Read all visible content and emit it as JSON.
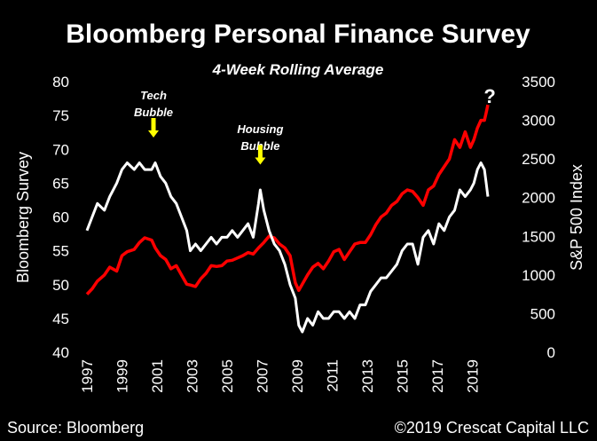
{
  "chart_data": {
    "type": "line",
    "title": "Bloomberg Personal Finance Survey",
    "subtitle": "4-Week Rolling Average",
    "xlabel": "",
    "ylabel_left": "Bloomberg  Survey",
    "ylabel_right": "S&P 500 Index",
    "xlim": [
      1997,
      2020
    ],
    "ylim_left": [
      40,
      80
    ],
    "ylim_right": [
      0,
      3500
    ],
    "x_ticks": [
      "1997",
      "1999",
      "2001",
      "2003",
      "2005",
      "2007",
      "2009",
      "2011",
      "2013",
      "2015",
      "2017",
      "2019"
    ],
    "y_left_ticks": [
      "40",
      "45",
      "50",
      "55",
      "60",
      "65",
      "70",
      "75",
      "80"
    ],
    "y_right_ticks": [
      "0",
      "500",
      "1000",
      "1500",
      "2000",
      "2500",
      "3000",
      "3500"
    ],
    "series": [
      {
        "name": "Bloomberg Survey",
        "axis": "left",
        "color": "#ffffff",
        "x": [
          1997.0,
          1997.3,
          1997.6,
          1998.0,
          1998.3,
          1998.7,
          1999.0,
          1999.3,
          1999.7,
          2000.0,
          2000.3,
          2000.7,
          2000.9,
          2001.2,
          2001.5,
          2001.8,
          2002.1,
          2002.4,
          2002.7,
          2002.9,
          2003.2,
          2003.5,
          2003.8,
          2004.1,
          2004.4,
          2004.7,
          2005.0,
          2005.3,
          2005.6,
          2005.9,
          2006.2,
          2006.5,
          2006.8,
          2006.9,
          2007.1,
          2007.4,
          2007.7,
          2008.0,
          2008.3,
          2008.6,
          2008.9,
          2009.1,
          2009.3,
          2009.6,
          2009.9,
          2010.2,
          2010.5,
          2010.8,
          2011.1,
          2011.4,
          2011.7,
          2012.0,
          2012.3,
          2012.6,
          2012.9,
          2013.2,
          2013.5,
          2013.8,
          2014.1,
          2014.4,
          2014.7,
          2015.0,
          2015.3,
          2015.6,
          2015.9,
          2016.2,
          2016.5,
          2016.8,
          2017.1,
          2017.4,
          2017.7,
          2018.0,
          2018.3,
          2018.6,
          2018.9,
          2019.1,
          2019.3,
          2019.5,
          2019.7,
          2019.8,
          2019.9
        ],
        "values": [
          58,
          60,
          62,
          61,
          63,
          65,
          67,
          68,
          67,
          68,
          67,
          67,
          68,
          66,
          65,
          63,
          62,
          60,
          58,
          55,
          56,
          55,
          56,
          57,
          56,
          57,
          57,
          58,
          57,
          58,
          59,
          57,
          62,
          64,
          61,
          58,
          56,
          55,
          53,
          50,
          48,
          44,
          43,
          45,
          44,
          46,
          45,
          45,
          46,
          46,
          45,
          46,
          45,
          47,
          47,
          49,
          50,
          51,
          51,
          52,
          53,
          55,
          56,
          56,
          53,
          57,
          58,
          56,
          59,
          58,
          60,
          61,
          64,
          63,
          64,
          65,
          67,
          68,
          67,
          65,
          63
        ]
      },
      {
        "name": "S&P 500 Index",
        "axis": "right",
        "color": "#ff0000",
        "x": [
          1997.0,
          1997.3,
          1997.6,
          1998.0,
          1998.3,
          1998.7,
          1999.0,
          1999.3,
          1999.7,
          2000.0,
          2000.3,
          2000.7,
          2000.9,
          2001.2,
          2001.5,
          2001.8,
          2002.1,
          2002.4,
          2002.7,
          2002.9,
          2003.2,
          2003.5,
          2003.8,
          2004.1,
          2004.4,
          2004.7,
          2005.0,
          2005.3,
          2005.6,
          2005.9,
          2006.2,
          2006.5,
          2006.8,
          2007.1,
          2007.4,
          2007.7,
          2008.0,
          2008.3,
          2008.6,
          2008.9,
          2009.1,
          2009.3,
          2009.6,
          2009.9,
          2010.2,
          2010.5,
          2010.8,
          2011.1,
          2011.4,
          2011.7,
          2012.0,
          2012.3,
          2012.6,
          2012.9,
          2013.2,
          2013.5,
          2013.8,
          2014.1,
          2014.4,
          2014.7,
          2015.0,
          2015.3,
          2015.6,
          2015.9,
          2016.2,
          2016.5,
          2016.8,
          2017.1,
          2017.4,
          2017.7,
          2018.0,
          2018.3,
          2018.6,
          2018.9,
          2019.1,
          2019.3,
          2019.5,
          2019.7,
          2019.8,
          2019.9
        ],
        "values": [
          750,
          820,
          920,
          1000,
          1100,
          1050,
          1250,
          1300,
          1330,
          1420,
          1480,
          1450,
          1350,
          1250,
          1200,
          1080,
          1120,
          1000,
          880,
          870,
          850,
          950,
          1020,
          1120,
          1110,
          1120,
          1180,
          1190,
          1220,
          1250,
          1290,
          1270,
          1350,
          1420,
          1500,
          1480,
          1400,
          1350,
          1250,
          900,
          800,
          880,
          1000,
          1100,
          1150,
          1080,
          1180,
          1300,
          1330,
          1200,
          1300,
          1400,
          1420,
          1420,
          1520,
          1650,
          1750,
          1800,
          1900,
          1950,
          2050,
          2100,
          2080,
          2000,
          1900,
          2100,
          2150,
          2300,
          2400,
          2500,
          2750,
          2650,
          2850,
          2650,
          2750,
          2900,
          3000,
          3000,
          3100,
          3200
        ]
      }
    ],
    "annotations": [
      {
        "text": "Tech Bubble",
        "line1": "Tech",
        "line2": "Bubble",
        "x": 2000.8,
        "y": 72,
        "arrow_color": "#ffff00"
      },
      {
        "text": "Housing Bubble",
        "line1": "Housing",
        "line2": "Bubble",
        "x": 2006.9,
        "y": 68,
        "arrow_color": "#ffff00"
      },
      {
        "text": "?",
        "x": 2019.8,
        "y": 3250
      }
    ]
  },
  "footer": {
    "source": "Source: Bloomberg",
    "copyright": "©2019 Crescat Capital LLC"
  }
}
